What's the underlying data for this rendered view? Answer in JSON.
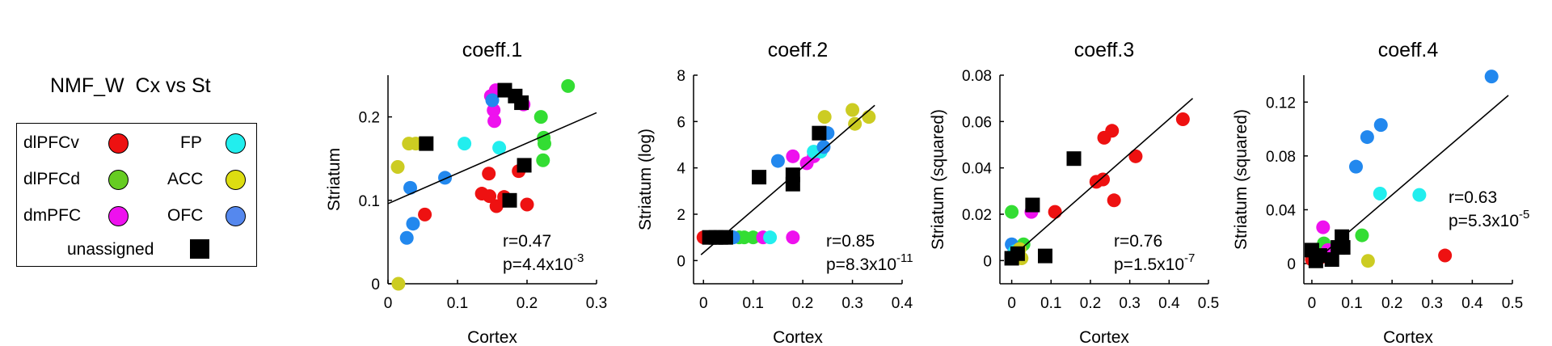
{
  "legend": {
    "title": "NMF_W  Cx vs St",
    "items": [
      {
        "label": "dlPFCv",
        "color": "#ee1111",
        "marker": "circle"
      },
      {
        "label": "dlPFCd",
        "color": "#66cc22",
        "marker": "circle"
      },
      {
        "label": "dmPFC",
        "color": "#ee11ee",
        "marker": "circle"
      },
      {
        "label": "FP",
        "color": "#22eeee",
        "marker": "circle"
      },
      {
        "label": "ACC",
        "color": "#dddd11",
        "marker": "circle"
      },
      {
        "label": "OFC",
        "color": "#5588ee",
        "marker": "circle"
      },
      {
        "label": "unassigned",
        "color": "#000000",
        "marker": "square"
      }
    ]
  },
  "palette": {
    "red": "#ee1111",
    "green": "#33dd33",
    "olive": "#66cc22",
    "magenta": "#ee11ee",
    "cyan": "#22eeee",
    "yellow": "#cccc22",
    "blue": "#2288ee",
    "black": "#000000"
  },
  "chart_data": [
    {
      "type": "scatter",
      "title": "coeff.1",
      "xlabel": "Cortex",
      "ylabel": "Striatum",
      "xlim": [
        0,
        0.3
      ],
      "ylim": [
        0,
        0.25
      ],
      "xticks": [
        0,
        0.1,
        0.2,
        0.3
      ],
      "xtick_labels": [
        "0",
        "0.1",
        "0.2",
        "0.3"
      ],
      "yticks": [
        0,
        0.1,
        0.2
      ],
      "ytick_labels": [
        "0",
        "0.1",
        "0.2"
      ],
      "fit": {
        "x": [
          0,
          0.3
        ],
        "y": [
          0.096,
          0.205
        ]
      },
      "stats": [
        "r=0.47",
        "p=4.4x10",
        "-3"
      ],
      "points": [
        {
          "x": 0.053,
          "y": 0.083,
          "c": "red"
        },
        {
          "x": 0.135,
          "y": 0.108,
          "c": "red"
        },
        {
          "x": 0.146,
          "y": 0.105,
          "c": "red"
        },
        {
          "x": 0.156,
          "y": 0.093,
          "c": "red"
        },
        {
          "x": 0.145,
          "y": 0.132,
          "c": "red"
        },
        {
          "x": 0.188,
          "y": 0.135,
          "c": "red"
        },
        {
          "x": 0.167,
          "y": 0.104,
          "c": "red"
        },
        {
          "x": 0.2,
          "y": 0.095,
          "c": "red"
        },
        {
          "x": 0.22,
          "y": 0.2,
          "c": "green"
        },
        {
          "x": 0.224,
          "y": 0.175,
          "c": "green"
        },
        {
          "x": 0.225,
          "y": 0.168,
          "c": "green"
        },
        {
          "x": 0.223,
          "y": 0.148,
          "c": "green"
        },
        {
          "x": 0.259,
          "y": 0.237,
          "c": "green"
        },
        {
          "x": 0.148,
          "y": 0.225,
          "c": "magenta"
        },
        {
          "x": 0.155,
          "y": 0.232,
          "c": "magenta"
        },
        {
          "x": 0.152,
          "y": 0.208,
          "c": "magenta"
        },
        {
          "x": 0.153,
          "y": 0.195,
          "c": "magenta"
        },
        {
          "x": 0.195,
          "y": 0.215,
          "c": "magenta"
        },
        {
          "x": 0.11,
          "y": 0.168,
          "c": "cyan"
        },
        {
          "x": 0.16,
          "y": 0.163,
          "c": "cyan"
        },
        {
          "x": 0.014,
          "y": 0.14,
          "c": "yellow"
        },
        {
          "x": 0.03,
          "y": 0.168,
          "c": "yellow"
        },
        {
          "x": 0.04,
          "y": 0.168,
          "c": "yellow"
        },
        {
          "x": 0.015,
          "y": 0.0,
          "c": "yellow"
        },
        {
          "x": 0.032,
          "y": 0.115,
          "c": "blue"
        },
        {
          "x": 0.082,
          "y": 0.127,
          "c": "blue"
        },
        {
          "x": 0.036,
          "y": 0.072,
          "c": "blue"
        },
        {
          "x": 0.027,
          "y": 0.055,
          "c": "blue"
        },
        {
          "x": 0.15,
          "y": 0.22,
          "c": "blue"
        },
        {
          "x": 0.055,
          "y": 0.168,
          "c": "black",
          "m": "square"
        },
        {
          "x": 0.168,
          "y": 0.232,
          "c": "black",
          "m": "square"
        },
        {
          "x": 0.183,
          "y": 0.225,
          "c": "black",
          "m": "square"
        },
        {
          "x": 0.192,
          "y": 0.217,
          "c": "black",
          "m": "square"
        },
        {
          "x": 0.196,
          "y": 0.142,
          "c": "black",
          "m": "square"
        },
        {
          "x": 0.175,
          "y": 0.1,
          "c": "black",
          "m": "square"
        }
      ]
    },
    {
      "type": "scatter",
      "title": "coeff.2",
      "xlabel": "Cortex",
      "ylabel": "Striatum (log)",
      "xlim": [
        -0.02,
        0.4
      ],
      "ylim": [
        -1,
        8
      ],
      "xticks": [
        0,
        0.1,
        0.2,
        0.3,
        0.4
      ],
      "xtick_labels": [
        "0",
        "0.1",
        "0.2",
        "0.3",
        "0.4"
      ],
      "yticks": [
        0,
        2,
        4,
        6,
        8
      ],
      "ytick_labels": [
        "0",
        "2",
        "4",
        "6",
        "8"
      ],
      "fit": {
        "x": [
          -0.005,
          0.345
        ],
        "y": [
          0.25,
          6.7
        ]
      },
      "stats": [
        "r=0.85",
        "p=8.3x10",
        "-11"
      ],
      "points": [
        {
          "x": 0.0,
          "y": 1.0,
          "c": "red"
        },
        {
          "x": 0.008,
          "y": 1.0,
          "c": "red"
        },
        {
          "x": 0.058,
          "y": 1.0,
          "c": "green"
        },
        {
          "x": 0.072,
          "y": 1.0,
          "c": "green"
        },
        {
          "x": 0.082,
          "y": 1.0,
          "c": "green"
        },
        {
          "x": 0.1,
          "y": 1.0,
          "c": "green"
        },
        {
          "x": 0.06,
          "y": 1.0,
          "c": "blue"
        },
        {
          "x": 0.12,
          "y": 1.0,
          "c": "magenta"
        },
        {
          "x": 0.18,
          "y": 1.0,
          "c": "magenta"
        },
        {
          "x": 0.134,
          "y": 1.0,
          "c": "cyan"
        },
        {
          "x": 0.18,
          "y": 4.5,
          "c": "magenta"
        },
        {
          "x": 0.208,
          "y": 4.2,
          "c": "magenta"
        },
        {
          "x": 0.222,
          "y": 4.5,
          "c": "magenta"
        },
        {
          "x": 0.222,
          "y": 4.7,
          "c": "cyan"
        },
        {
          "x": 0.236,
          "y": 4.7,
          "c": "cyan"
        },
        {
          "x": 0.15,
          "y": 4.3,
          "c": "blue"
        },
        {
          "x": 0.25,
          "y": 5.5,
          "c": "blue"
        },
        {
          "x": 0.242,
          "y": 4.9,
          "c": "blue"
        },
        {
          "x": 0.244,
          "y": 6.2,
          "c": "yellow"
        },
        {
          "x": 0.3,
          "y": 6.5,
          "c": "yellow"
        },
        {
          "x": 0.305,
          "y": 5.9,
          "c": "yellow"
        },
        {
          "x": 0.333,
          "y": 6.2,
          "c": "yellow"
        },
        {
          "x": 0.012,
          "y": 1.0,
          "c": "black",
          "m": "square"
        },
        {
          "x": 0.025,
          "y": 1.0,
          "c": "black",
          "m": "square"
        },
        {
          "x": 0.035,
          "y": 1.0,
          "c": "black",
          "m": "square"
        },
        {
          "x": 0.045,
          "y": 1.0,
          "c": "black",
          "m": "square"
        },
        {
          "x": 0.112,
          "y": 3.6,
          "c": "black",
          "m": "square"
        },
        {
          "x": 0.18,
          "y": 3.3,
          "c": "black",
          "m": "square"
        },
        {
          "x": 0.18,
          "y": 3.7,
          "c": "black",
          "m": "square"
        },
        {
          "x": 0.233,
          "y": 5.5,
          "c": "black",
          "m": "square"
        }
      ]
    },
    {
      "type": "scatter",
      "title": "coeff.3",
      "xlabel": "Cortex",
      "ylabel": "Striatum (squared)",
      "xlim": [
        -0.03,
        0.5
      ],
      "ylim": [
        -0.01,
        0.08
      ],
      "xticks": [
        0,
        0.1,
        0.2,
        0.3,
        0.4,
        0.5
      ],
      "xtick_labels": [
        "0",
        "0.1",
        "0.2",
        "0.3",
        "0.4",
        "0.5"
      ],
      "yticks": [
        0,
        0.02,
        0.04,
        0.06,
        0.08
      ],
      "ytick_labels": [
        "0",
        "0.02",
        "0.04",
        "0.06",
        "0.08"
      ],
      "fit": {
        "x": [
          -0.01,
          0.46
        ],
        "y": [
          0.0,
          0.07
        ]
      },
      "stats": [
        "r=0.76",
        "p=1.5x10",
        "-7"
      ],
      "points": [
        {
          "x": 0.11,
          "y": 0.021,
          "c": "red"
        },
        {
          "x": 0.215,
          "y": 0.034,
          "c": "red"
        },
        {
          "x": 0.232,
          "y": 0.035,
          "c": "red"
        },
        {
          "x": 0.235,
          "y": 0.053,
          "c": "red"
        },
        {
          "x": 0.255,
          "y": 0.056,
          "c": "red"
        },
        {
          "x": 0.26,
          "y": 0.026,
          "c": "red"
        },
        {
          "x": 0.315,
          "y": 0.045,
          "c": "red"
        },
        {
          "x": 0.435,
          "y": 0.061,
          "c": "red"
        },
        {
          "x": 0.0,
          "y": 0.021,
          "c": "green"
        },
        {
          "x": 0.03,
          "y": 0.007,
          "c": "green"
        },
        {
          "x": 0.05,
          "y": 0.021,
          "c": "magenta"
        },
        {
          "x": 0.0,
          "y": 0.007,
          "c": "blue"
        },
        {
          "x": 0.005,
          "y": 0.003,
          "c": "blue"
        },
        {
          "x": 0.008,
          "y": 0.004,
          "c": "cyan"
        },
        {
          "x": 0.02,
          "y": 0.005,
          "c": "yellow"
        },
        {
          "x": 0.025,
          "y": 0.001,
          "c": "yellow"
        },
        {
          "x": 0.0,
          "y": 0.001,
          "c": "black",
          "m": "square"
        },
        {
          "x": 0.015,
          "y": 0.003,
          "c": "black",
          "m": "square"
        },
        {
          "x": 0.053,
          "y": 0.024,
          "c": "black",
          "m": "square"
        },
        {
          "x": 0.085,
          "y": 0.002,
          "c": "black",
          "m": "square"
        },
        {
          "x": 0.158,
          "y": 0.044,
          "c": "black",
          "m": "square"
        }
      ]
    },
    {
      "type": "scatter",
      "title": "coeff.4",
      "xlabel": "Cortex",
      "ylabel": "Striatum (squared)",
      "xlim": [
        -0.02,
        0.5
      ],
      "ylim": [
        -0.015,
        0.14
      ],
      "xticks": [
        0,
        0.1,
        0.2,
        0.3,
        0.4,
        0.5
      ],
      "xtick_labels": [
        "0",
        "0.1",
        "0.2",
        "0.3",
        "0.4",
        "0.5"
      ],
      "yticks": [
        0,
        0.04,
        0.08,
        0.12
      ],
      "ytick_labels": [
        "0",
        "0.04",
        "0.08",
        "0.12"
      ],
      "fit": {
        "x": [
          0.0,
          0.49
        ],
        "y": [
          0.0,
          0.125
        ]
      },
      "stats": [
        "r=0.63",
        "p=5.3x10",
        "-5"
      ],
      "points": [
        {
          "x": 0.0,
          "y": 0.003,
          "c": "red"
        },
        {
          "x": 0.01,
          "y": 0.006,
          "c": "red"
        },
        {
          "x": 0.025,
          "y": 0.005,
          "c": "red"
        },
        {
          "x": 0.332,
          "y": 0.006,
          "c": "red"
        },
        {
          "x": 0.03,
          "y": 0.015,
          "c": "green"
        },
        {
          "x": 0.05,
          "y": 0.01,
          "c": "green"
        },
        {
          "x": 0.125,
          "y": 0.021,
          "c": "green"
        },
        {
          "x": 0.028,
          "y": 0.027,
          "c": "magenta"
        },
        {
          "x": 0.04,
          "y": 0.01,
          "c": "magenta"
        },
        {
          "x": 0.17,
          "y": 0.052,
          "c": "cyan"
        },
        {
          "x": 0.268,
          "y": 0.051,
          "c": "cyan"
        },
        {
          "x": 0.012,
          "y": 0.002,
          "c": "yellow"
        },
        {
          "x": 0.14,
          "y": 0.002,
          "c": "yellow"
        },
        {
          "x": 0.11,
          "y": 0.072,
          "c": "blue"
        },
        {
          "x": 0.138,
          "y": 0.094,
          "c": "blue"
        },
        {
          "x": 0.172,
          "y": 0.103,
          "c": "blue"
        },
        {
          "x": 0.448,
          "y": 0.139,
          "c": "blue"
        },
        {
          "x": 0.0,
          "y": 0.01,
          "c": "black",
          "m": "square"
        },
        {
          "x": 0.01,
          "y": 0.002,
          "c": "black",
          "m": "square"
        },
        {
          "x": 0.02,
          "y": 0.006,
          "c": "black",
          "m": "square"
        },
        {
          "x": 0.05,
          "y": 0.003,
          "c": "black",
          "m": "square"
        },
        {
          "x": 0.065,
          "y": 0.012,
          "c": "black",
          "m": "square"
        },
        {
          "x": 0.075,
          "y": 0.02,
          "c": "black",
          "m": "square"
        },
        {
          "x": 0.078,
          "y": 0.012,
          "c": "black",
          "m": "square"
        }
      ]
    }
  ]
}
